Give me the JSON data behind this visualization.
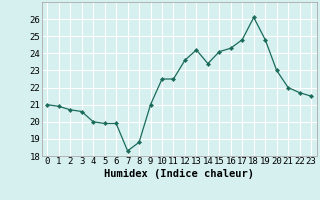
{
  "x": [
    0,
    1,
    2,
    3,
    4,
    5,
    6,
    7,
    8,
    9,
    10,
    11,
    12,
    13,
    14,
    15,
    16,
    17,
    18,
    19,
    20,
    21,
    22,
    23
  ],
  "y": [
    21.0,
    20.9,
    20.7,
    20.6,
    20.0,
    19.9,
    19.9,
    18.3,
    18.8,
    21.0,
    22.5,
    22.5,
    23.6,
    24.2,
    23.4,
    24.1,
    24.3,
    24.8,
    26.1,
    24.8,
    23.0,
    22.0,
    21.7,
    21.5
  ],
  "line_color": "#1a6b5a",
  "marker": "D",
  "marker_size": 2.2,
  "bg_color": "#d6f0f0",
  "grid_color": "#b8d8d8",
  "xlabel": "Humidex (Indice chaleur)",
  "ylim": [
    18,
    27
  ],
  "xlim": [
    -0.5,
    23.5
  ],
  "yticks": [
    18,
    19,
    20,
    21,
    22,
    23,
    24,
    25,
    26
  ],
  "xticks": [
    0,
    1,
    2,
    3,
    4,
    5,
    6,
    7,
    8,
    9,
    10,
    11,
    12,
    13,
    14,
    15,
    16,
    17,
    18,
    19,
    20,
    21,
    22,
    23
  ],
  "xlabel_fontsize": 7.5,
  "tick_fontsize": 6.5
}
